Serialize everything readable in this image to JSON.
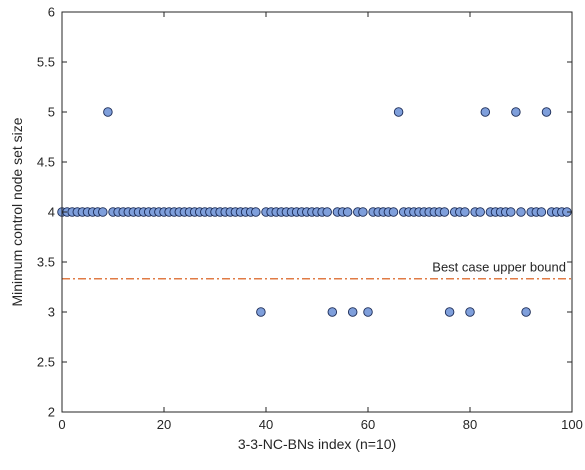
{
  "chart_data": {
    "type": "scatter",
    "xlabel": "3-3-NC-BNs index (n=10)",
    "ylabel": "Minimum control node set size",
    "xlim": [
      0,
      100
    ],
    "ylim": [
      2,
      6
    ],
    "xticks": [
      0,
      20,
      40,
      60,
      80,
      100
    ],
    "yticks": [
      2,
      2.5,
      3,
      3.5,
      4,
      4.5,
      5,
      5.5,
      6
    ],
    "xtick_labels": [
      "0",
      "20",
      "40",
      "60",
      "80",
      "100"
    ],
    "ytick_labels": [
      "2",
      "2.5",
      "3",
      "3.5",
      "4",
      "4.5",
      "5",
      "5.5",
      "6"
    ],
    "grid": false,
    "colors": {
      "marker_fill": "#7f9fdb",
      "marker_edge": "#1a2a55",
      "bound_line": "#e07b45",
      "annotation": "#e07b45"
    },
    "points": {
      "x": [
        0,
        1,
        2,
        3,
        4,
        5,
        6,
        7,
        8,
        9,
        10,
        11,
        12,
        13,
        14,
        15,
        16,
        17,
        18,
        19,
        20,
        21,
        22,
        23,
        24,
        25,
        26,
        27,
        28,
        29,
        30,
        31,
        32,
        33,
        34,
        35,
        36,
        37,
        38,
        39,
        40,
        41,
        42,
        43,
        44,
        45,
        46,
        47,
        48,
        49,
        50,
        51,
        52,
        53,
        54,
        55,
        56,
        57,
        58,
        59,
        60,
        61,
        62,
        63,
        64,
        65,
        66,
        67,
        68,
        69,
        70,
        71,
        72,
        73,
        74,
        75,
        76,
        77,
        78,
        79,
        80,
        81,
        82,
        83,
        84,
        85,
        86,
        87,
        88,
        89,
        90,
        91,
        92,
        93,
        94,
        95,
        96,
        97,
        98,
        99
      ],
      "y": [
        4,
        4,
        4,
        4,
        4,
        4,
        4,
        4,
        4,
        5,
        4,
        4,
        4,
        4,
        4,
        4,
        4,
        4,
        4,
        4,
        4,
        4,
        4,
        4,
        4,
        4,
        4,
        4,
        4,
        4,
        4,
        4,
        4,
        4,
        4,
        4,
        4,
        4,
        4,
        3,
        4,
        4,
        4,
        4,
        4,
        4,
        4,
        4,
        4,
        4,
        4,
        4,
        4,
        3,
        4,
        4,
        4,
        3,
        4,
        4,
        3,
        4,
        4,
        4,
        4,
        4,
        5,
        4,
        4,
        4,
        4,
        4,
        4,
        4,
        4,
        4,
        3,
        4,
        4,
        4,
        3,
        4,
        4,
        5,
        4,
        4,
        4,
        4,
        4,
        5,
        4,
        3,
        4,
        4,
        4,
        5,
        4,
        4,
        4,
        4
      ]
    },
    "reference_line": {
      "y": 3.333,
      "style": "dash-dot",
      "label": "Best case upper bound"
    }
  }
}
